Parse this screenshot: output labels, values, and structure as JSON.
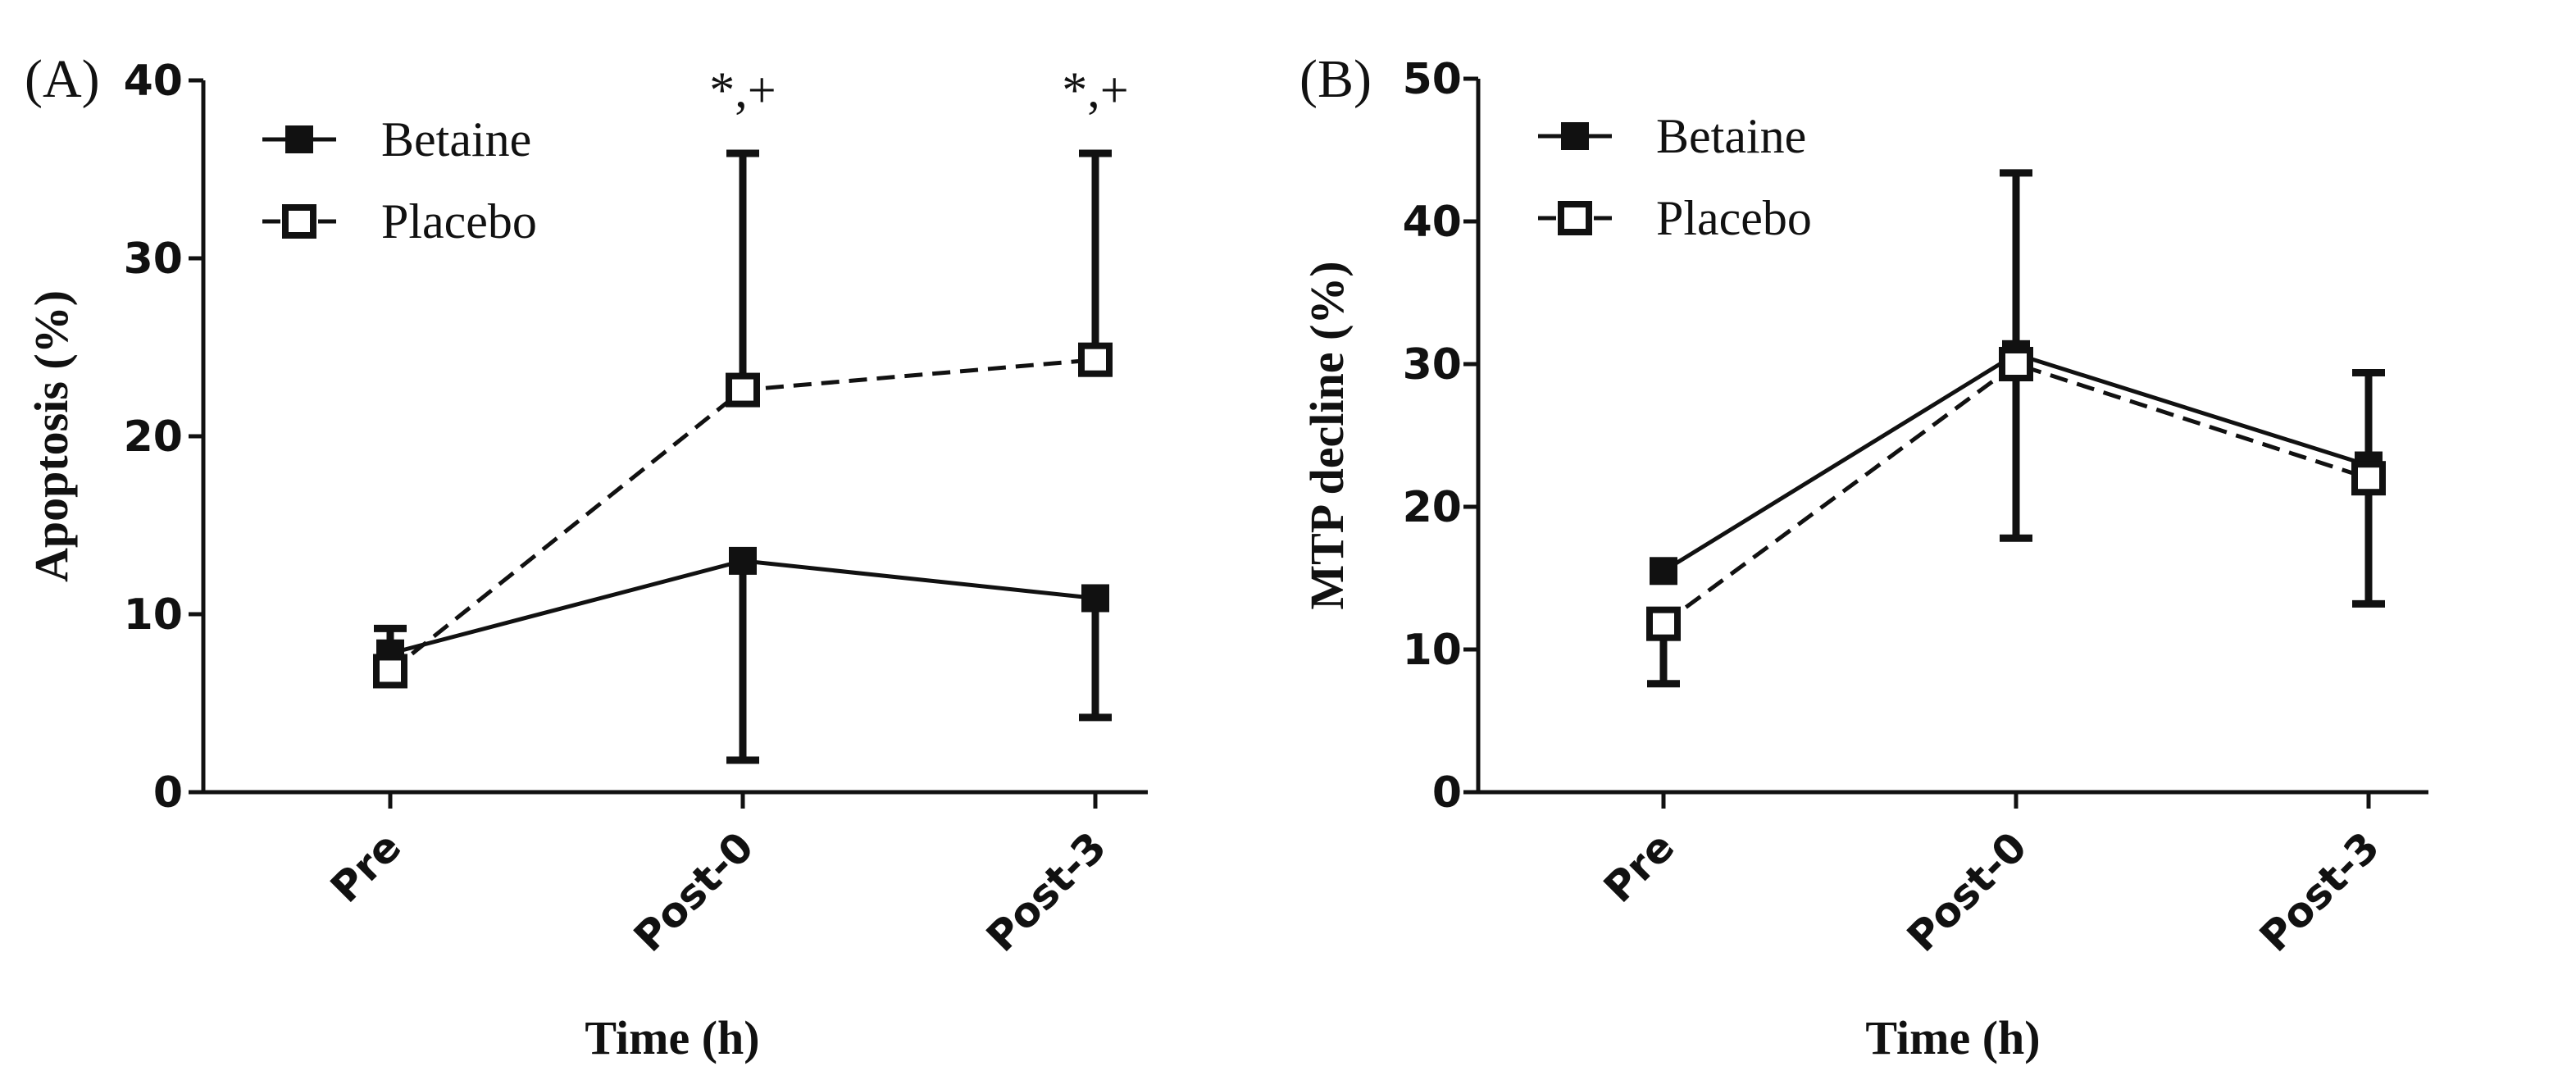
{
  "chart_data": [
    {
      "type": "line",
      "panel_label": "(A)",
      "xlabel": "Time (h)",
      "ylabel": "Apoptosis (%)",
      "categories": [
        "Pre",
        "Post-0",
        "Post-3"
      ],
      "ylim": [
        0,
        40
      ],
      "yticks": [
        "0",
        "10",
        "20",
        "30",
        "40"
      ],
      "grid": false,
      "legend_position": "top-left",
      "series": [
        {
          "name": "Betaine",
          "values": [
            7.8,
            13.0,
            10.9
          ],
          "error_low": [
            null,
            1.8,
            4.2
          ],
          "error_high": [
            9.2,
            null,
            null
          ],
          "line_style": "solid",
          "marker": "filled-square"
        },
        {
          "name": "Placebo",
          "values": [
            6.8,
            22.6,
            24.3
          ],
          "error_low": [
            null,
            null,
            null
          ],
          "error_high": [
            null,
            35.9,
            35.9
          ],
          "line_style": "dashed",
          "marker": "open-square"
        }
      ],
      "annotations": [
        {
          "category": "Post-0",
          "y": 38.5,
          "text": "*,+"
        },
        {
          "category": "Post-3",
          "y": 38.5,
          "text": "*,+"
        }
      ]
    },
    {
      "type": "line",
      "panel_label": "(B)",
      "xlabel": "Time (h)",
      "ylabel": "MTP decline (%)",
      "categories": [
        "Pre",
        "Post-0",
        "Post-3"
      ],
      "ylim": [
        0,
        50
      ],
      "yticks": [
        "0",
        "10",
        "20",
        "30",
        "40",
        "50"
      ],
      "grid": false,
      "legend_position": "top-left",
      "series": [
        {
          "name": "Betaine",
          "values": [
            15.5,
            30.7,
            22.9
          ],
          "error_low": [
            null,
            17.8,
            13.2
          ],
          "error_high": [
            null,
            43.4,
            29.4
          ],
          "line_style": "solid",
          "marker": "filled-square"
        },
        {
          "name": "Placebo",
          "values": [
            11.8,
            30.0,
            22.0
          ],
          "error_low": [
            7.6,
            null,
            null
          ],
          "error_high": [
            null,
            null,
            null
          ],
          "line_style": "dashed",
          "marker": "open-square"
        }
      ],
      "annotations": []
    }
  ]
}
